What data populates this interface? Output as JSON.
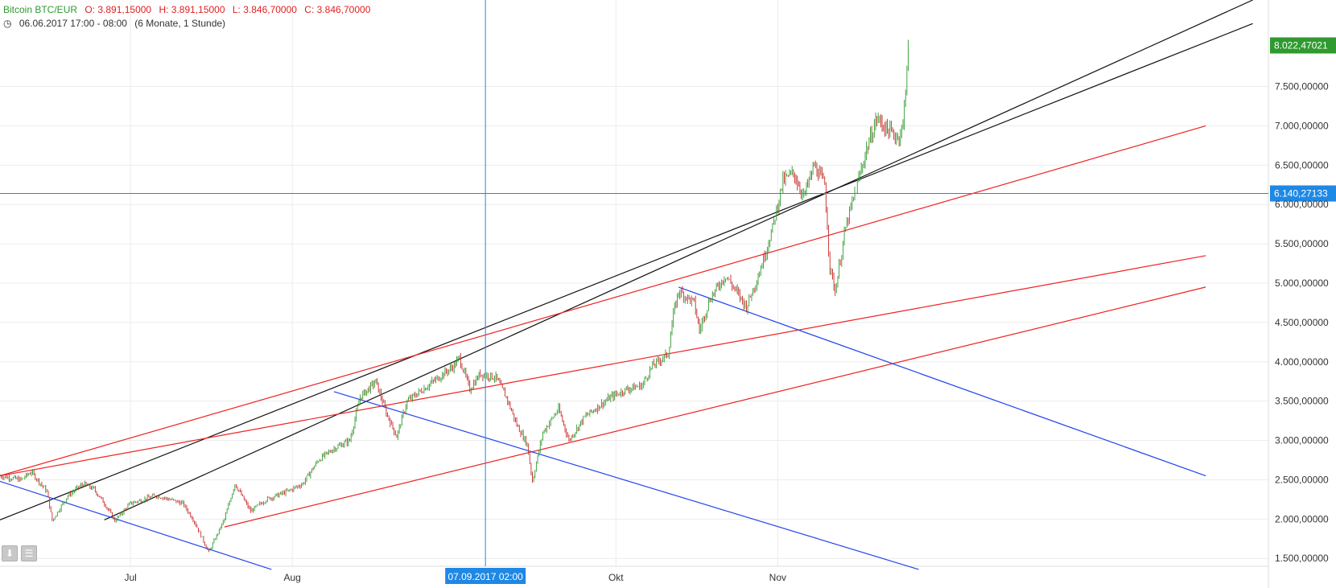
{
  "header": {
    "symbol": "Bitcoin BTC/EUR",
    "open": "O: 3.891,15000",
    "high": "H: 3.891,15000",
    "low": "L: 3.846,70000",
    "close": "C: 3.846,70000",
    "range": "06.06.2017 17:00 - 08:00",
    "period": "(6 Monate, 1 Stunde)"
  },
  "crosshair": {
    "date_label": "07.09.2017 02:00",
    "price_label": "6.140,27133",
    "price": 6140.27
  },
  "last_price": {
    "label": "8.022,47021",
    "value": 8022.47
  },
  "colors": {
    "accent": "#2f9a2f",
    "crosshair": "#1e88e5",
    "trend_black": "#111111",
    "trend_red": "#ee2222",
    "trend_blue": "#2244ee"
  },
  "icons": {
    "download": "download-icon",
    "settings": "settings-icon"
  },
  "chart_data": {
    "type": "candlestick",
    "title": "",
    "ylim": [
      1400,
      8600
    ],
    "y_ticks": [
      {
        "value": 1500,
        "label": "1.500,00000"
      },
      {
        "value": 2000,
        "label": "2.000,00000"
      },
      {
        "value": 2500,
        "label": "2.500,00000"
      },
      {
        "value": 3000,
        "label": "3.000,00000"
      },
      {
        "value": 3500,
        "label": "3.500,00000"
      },
      {
        "value": 4000,
        "label": "4.000,00000"
      },
      {
        "value": 4500,
        "label": "4.500,00000"
      },
      {
        "value": 5000,
        "label": "5.000,00000"
      },
      {
        "value": 5500,
        "label": "5.500,00000"
      },
      {
        "value": 6000,
        "label": "6.000,00000"
      },
      {
        "value": 6500,
        "label": "6.500,00000"
      },
      {
        "value": 7000,
        "label": "7.000,00000"
      },
      {
        "value": 7500,
        "label": "7.500,00000"
      }
    ],
    "x_ticks": [
      {
        "day": 25,
        "label": "Jul"
      },
      {
        "day": 56,
        "label": "Aug"
      },
      {
        "day": 118,
        "label": "Okt"
      },
      {
        "day": 149,
        "label": "Nov"
      }
    ],
    "x_range": [
      0,
      243
    ],
    "crosshair_day": 93,
    "price_path": [
      [
        0,
        2550
      ],
      [
        4,
        2500
      ],
      [
        6,
        2600
      ],
      [
        9,
        2350
      ],
      [
        10,
        1980
      ],
      [
        13,
        2300
      ],
      [
        16,
        2450
      ],
      [
        18,
        2380
      ],
      [
        20,
        2200
      ],
      [
        22,
        1980
      ],
      [
        25,
        2200
      ],
      [
        30,
        2300
      ],
      [
        35,
        2200
      ],
      [
        37,
        2000
      ],
      [
        40,
        1580
      ],
      [
        43,
        2000
      ],
      [
        45,
        2450
      ],
      [
        48,
        2100
      ],
      [
        51,
        2250
      ],
      [
        55,
        2350
      ],
      [
        58,
        2450
      ],
      [
        61,
        2750
      ],
      [
        64,
        2900
      ],
      [
        67,
        3000
      ],
      [
        69,
        3550
      ],
      [
        72,
        3750
      ],
      [
        74,
        3350
      ],
      [
        76,
        3050
      ],
      [
        78,
        3500
      ],
      [
        81,
        3650
      ],
      [
        84,
        3800
      ],
      [
        87,
        3950
      ],
      [
        88,
        4050
      ],
      [
        90,
        3650
      ],
      [
        92,
        3850
      ],
      [
        95,
        3800
      ],
      [
        97,
        3550
      ],
      [
        99,
        3200
      ],
      [
        101,
        2950
      ],
      [
        102,
        2480
      ],
      [
        104,
        3100
      ],
      [
        107,
        3400
      ],
      [
        109,
        3000
      ],
      [
        112,
        3300
      ],
      [
        115,
        3450
      ],
      [
        117,
        3550
      ],
      [
        120,
        3650
      ],
      [
        123,
        3700
      ],
      [
        125,
        3950
      ],
      [
        128,
        4100
      ],
      [
        129,
        4600
      ],
      [
        130,
        4900
      ],
      [
        133,
        4750
      ],
      [
        134,
        4400
      ],
      [
        136,
        4800
      ],
      [
        139,
        5100
      ],
      [
        141,
        4900
      ],
      [
        143,
        4700
      ],
      [
        145,
        5050
      ],
      [
        146,
        5250
      ],
      [
        148,
        5700
      ],
      [
        150,
        6300
      ],
      [
        152,
        6400
      ],
      [
        154,
        6100
      ],
      [
        156,
        6500
      ],
      [
        158,
        6250
      ],
      [
        159,
        5200
      ],
      [
        160,
        4900
      ],
      [
        162,
        5700
      ],
      [
        164,
        6200
      ],
      [
        166,
        6700
      ],
      [
        168,
        7100
      ],
      [
        170,
        6950
      ],
      [
        172,
        6850
      ],
      [
        173,
        7000
      ],
      [
        174,
        8022
      ]
    ],
    "trendlines": [
      {
        "color": "black",
        "points": [
          [
            0,
            1990
          ],
          [
            240,
            8300
          ]
        ]
      },
      {
        "color": "black",
        "points": [
          [
            20,
            1990
          ],
          [
            240,
            8600
          ]
        ]
      },
      {
        "color": "red",
        "points": [
          [
            0,
            2550
          ],
          [
            231,
            7000
          ]
        ]
      },
      {
        "color": "red",
        "points": [
          [
            0,
            2550
          ],
          [
            231,
            5350
          ]
        ]
      },
      {
        "color": "red",
        "points": [
          [
            43,
            1900
          ],
          [
            231,
            4950
          ]
        ]
      },
      {
        "color": "blue",
        "points": [
          [
            0,
            2480
          ],
          [
            52,
            1360
          ]
        ]
      },
      {
        "color": "blue",
        "points": [
          [
            64,
            3620
          ],
          [
            176,
            1360
          ]
        ]
      },
      {
        "color": "blue",
        "points": [
          [
            130,
            4950
          ],
          [
            231,
            2550
          ]
        ]
      }
    ]
  }
}
